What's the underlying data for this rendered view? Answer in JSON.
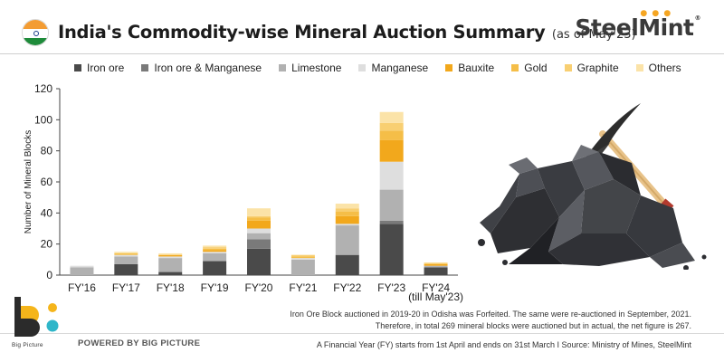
{
  "header": {
    "title": "India's Commodity-wise Mineral Auction Summary",
    "subtitle": "(as of May'23)",
    "brand": "SteelMint",
    "brand_mark": "®"
  },
  "colors": {
    "Iron ore": "#4a4a4a",
    "Iron ore & Manganese": "#7a7a7a",
    "Limestone": "#b1b1b1",
    "Manganese": "#dedede",
    "Bauxite": "#f2a81c",
    "Gold": "#f5be48",
    "Graphite": "#f8cf72",
    "Others": "#fbe3a8"
  },
  "chart_data": {
    "type": "bar",
    "stacked": true,
    "categories": [
      "FY'16",
      "FY'17",
      "FY'18",
      "FY'19",
      "FY'20",
      "FY'21",
      "FY'22",
      "FY'23",
      "FY'24"
    ],
    "category_notes": [
      "",
      "",
      "",
      "",
      "",
      "",
      "",
      "",
      "(till May'23)"
    ],
    "series": [
      {
        "name": "Iron ore",
        "values": [
          0,
          7,
          2,
          9,
          17,
          0,
          13,
          33,
          5
        ]
      },
      {
        "name": "Iron ore & Manganese",
        "values": [
          0,
          0,
          0,
          0,
          6,
          0,
          0,
          2,
          0
        ]
      },
      {
        "name": "Limestone",
        "values": [
          5,
          5,
          9,
          5,
          4,
          10,
          19,
          20,
          1
        ]
      },
      {
        "name": "Manganese",
        "values": [
          1,
          1,
          1,
          1,
          3,
          1,
          1,
          18,
          0
        ]
      },
      {
        "name": "Bauxite",
        "values": [
          0,
          0,
          1,
          1,
          5,
          0,
          5,
          14,
          1
        ]
      },
      {
        "name": "Gold",
        "values": [
          0,
          1,
          0,
          1,
          2,
          1,
          3,
          6,
          0
        ]
      },
      {
        "name": "Graphite",
        "values": [
          0,
          0,
          0,
          1,
          1,
          1,
          2,
          5,
          1
        ]
      },
      {
        "name": "Others",
        "values": [
          0,
          1,
          1,
          1,
          5,
          0,
          3,
          7,
          0
        ]
      }
    ],
    "ylabel": "Number of Mineral Blocks",
    "xlabel": "",
    "ylim": [
      0,
      120
    ],
    "yticks": [
      0,
      20,
      40,
      60,
      80,
      100,
      120
    ],
    "grid": false,
    "legend_position": "top"
  },
  "notes": {
    "forfeit_note": "Iron Ore Block auctioned in 2019-20 in Odisha was Forfeited. The same were re-auctioned in September, 2021. Therefore, in total 269 mineral blocks were auctioned but in actual, the net figure is 267.",
    "source": "A Financial Year (FY) starts from 1st April and ends on 31st March  I  Source: Ministry of Mines, SteelMint"
  },
  "footer": {
    "bp_label": "Big Picture",
    "powered_by": "POWERED BY BIG PICTURE"
  }
}
